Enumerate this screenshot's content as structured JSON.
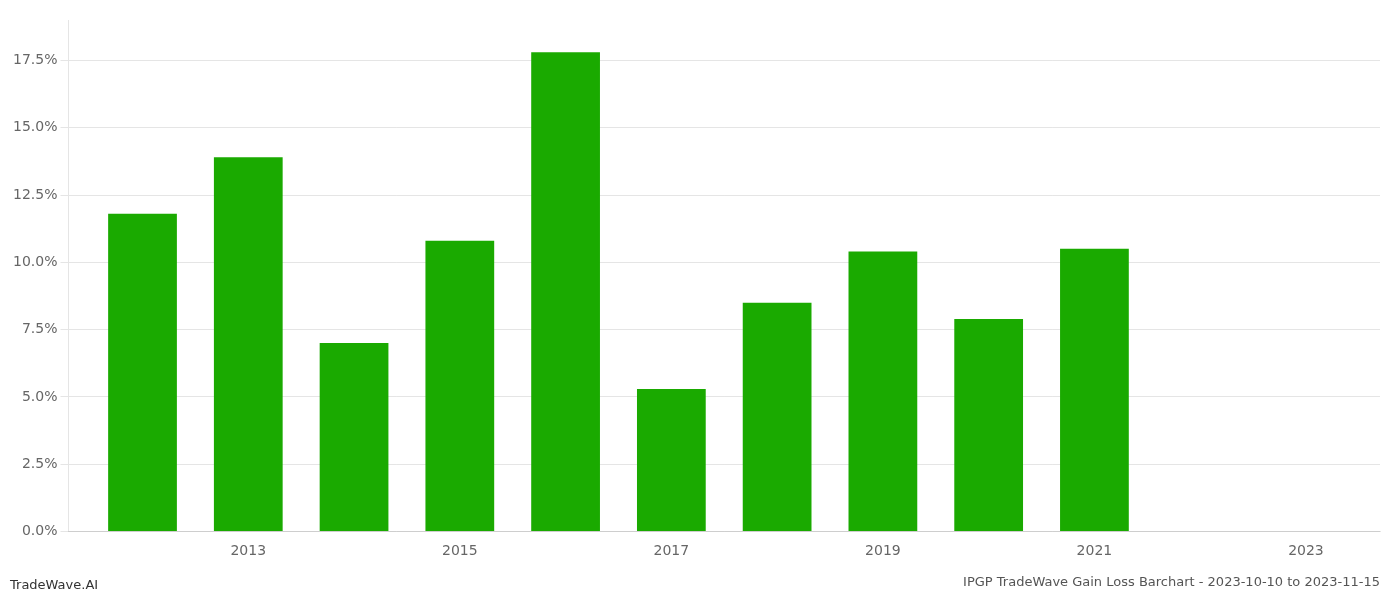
{
  "chart_data": {
    "type": "bar",
    "title": "IPGP TradeWave Gain Loss Barchart - 2023-10-10 to 2023-11-15",
    "annotations": [
      {
        "text": "TradeWave.AI"
      }
    ],
    "x": [
      2012,
      2013,
      2014,
      2015,
      2016,
      2017,
      2018,
      2019,
      2020,
      2021,
      2022
    ],
    "values": [
      0.118,
      0.139,
      0.07,
      0.108,
      0.178,
      0.053,
      0.085,
      0.104,
      0.079,
      0.105,
      0.0
    ],
    "color": "#1aaa00",
    "xlim": [
      2011.3,
      2023.7
    ],
    "xticks": [
      2013,
      2015,
      2017,
      2019,
      2021,
      2023
    ],
    "ylim": [
      0,
      0.19
    ],
    "yticks": [
      {
        "value": 0,
        "label": "0.0%"
      },
      {
        "value": 0.025,
        "label": "2.5%"
      },
      {
        "value": 0.05,
        "label": "5.0%"
      },
      {
        "value": 0.075,
        "label": "7.5%"
      },
      {
        "value": 0.1,
        "label": "10.0%"
      },
      {
        "value": 0.125,
        "label": "12.5%"
      },
      {
        "value": 0.15,
        "label": "15.0%"
      },
      {
        "value": 0.175,
        "label": "17.5%"
      }
    ],
    "grid": true
  }
}
